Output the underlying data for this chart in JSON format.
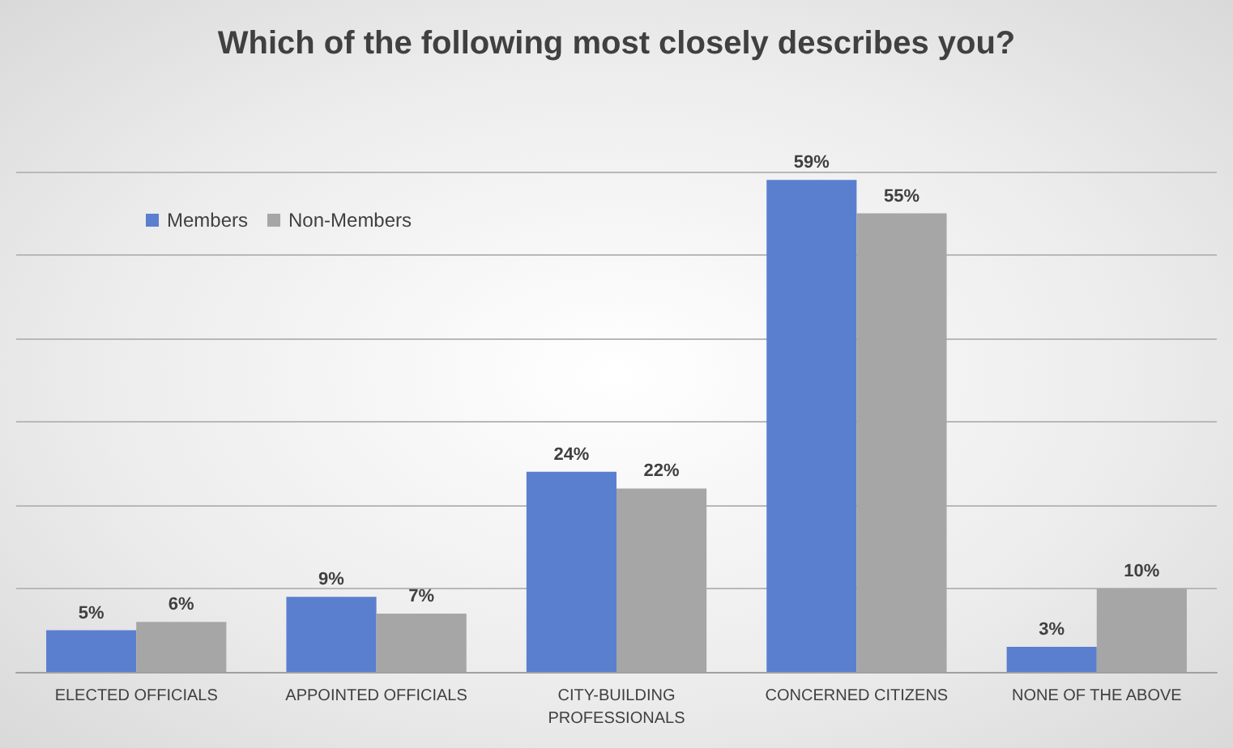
{
  "chart_data": {
    "type": "bar",
    "title": "Which of the following most closely describes you?",
    "categories": [
      "ELECTED OFFICIALS",
      "APPOINTED OFFICIALS",
      "CITY-BUILDING\nPROFESSIONALS",
      "CONCERNED CITIZENS",
      "NONE OF THE ABOVE"
    ],
    "series": [
      {
        "name": "Members",
        "color": "#5b7fcf",
        "values": [
          5,
          9,
          24,
          59,
          3
        ],
        "value_labels": [
          "5%",
          "9%",
          "24%",
          "59%",
          "3%"
        ]
      },
      {
        "name": "Non-Members",
        "color": "#a6a6a6",
        "values": [
          6,
          7,
          22,
          55,
          10
        ],
        "value_labels": [
          "6%",
          "7%",
          "22%",
          "55%",
          "10%"
        ]
      }
    ],
    "ylim": [
      0,
      60
    ],
    "yticks": [
      {
        "value": 0,
        "label": null
      },
      {
        "value": 10,
        "label": null
      },
      {
        "value": 20,
        "label": null
      },
      {
        "value": 30,
        "label": null
      },
      {
        "value": 40,
        "label": null
      },
      {
        "value": 50,
        "label": null
      },
      {
        "value": 60,
        "label": null
      }
    ],
    "grid": "y",
    "legend": "top left",
    "tick_labels": "x"
  }
}
